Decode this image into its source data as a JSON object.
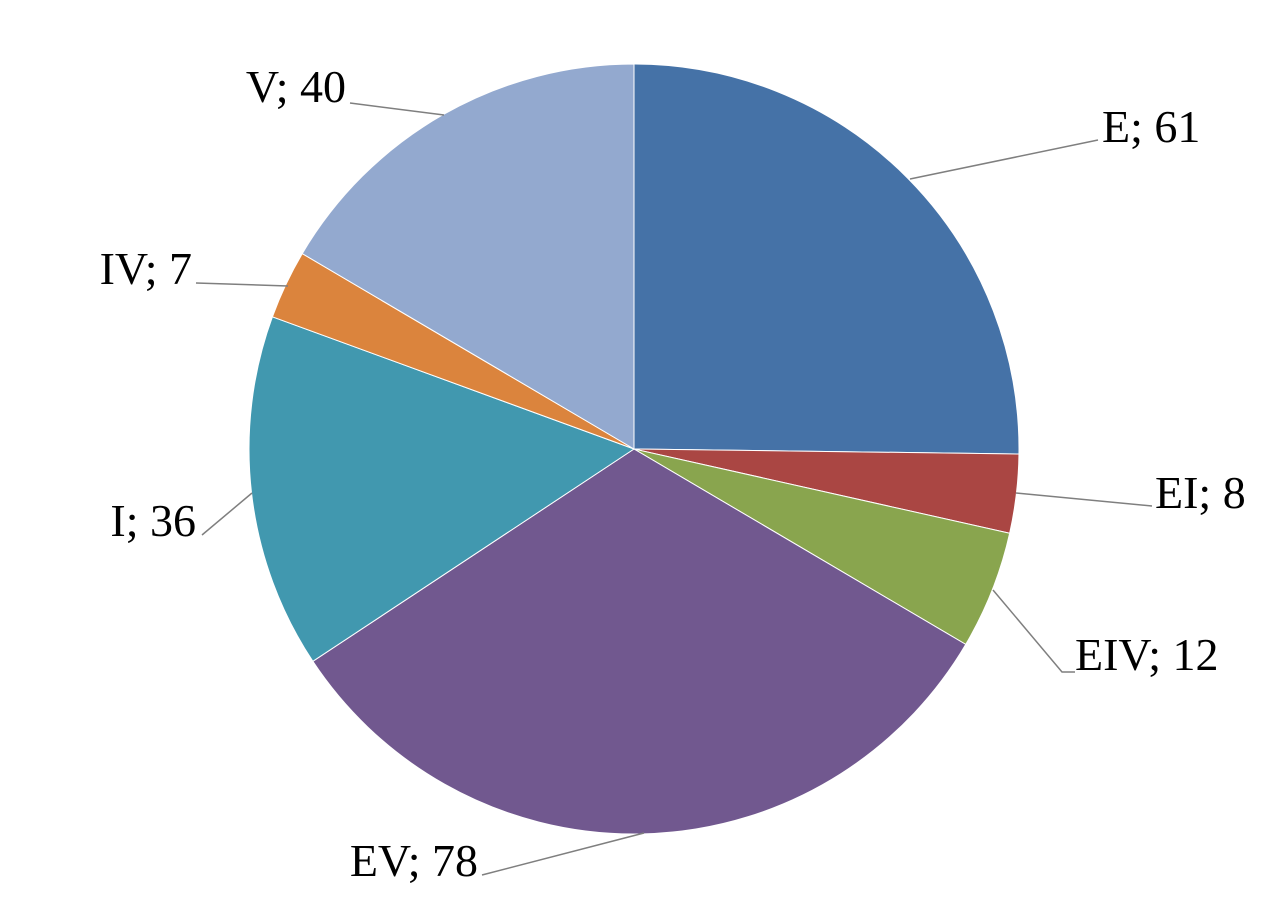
{
  "chart_data": {
    "type": "pie",
    "title": "",
    "start_angle_deg": 0,
    "direction": "clockwise",
    "label_separator": "; ",
    "slices": [
      {
        "label": "E",
        "value": 61,
        "color": "#4572A7"
      },
      {
        "label": "EI",
        "value": 8,
        "color": "#AA4643"
      },
      {
        "label": "EIV",
        "value": 12,
        "color": "#89A54E"
      },
      {
        "label": "EV",
        "value": 78,
        "color": "#71588F"
      },
      {
        "label": "I",
        "value": 36,
        "color": "#4198AF"
      },
      {
        "label": "IV",
        "value": 7,
        "color": "#DB843D"
      },
      {
        "label": "V",
        "value": 40,
        "color": "#93A9CF"
      }
    ]
  }
}
